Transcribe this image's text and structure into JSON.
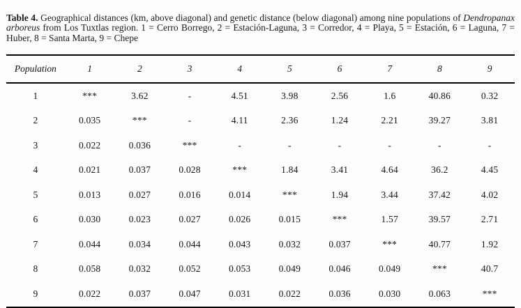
{
  "caption": {
    "label": "Table 4.",
    "part1": " Geographical distances (km, above diagonal) and genetic distance (below diagonal) among nine populations of ",
    "species": "Dendropanax arboreus",
    "part2": " from Los Tuxtlas region. 1 = Cerro Borrego, 2 = Estación-Laguna, 3 = Corredor, 4 = Playa, 5 = Estación, 6 = Laguna, 7 = Huber, 8 = Santa Marta, 9 = Chepe"
  },
  "table": {
    "header": [
      "Population",
      "1",
      "2",
      "3",
      "4",
      "5",
      "6",
      "7",
      "8",
      "9"
    ],
    "rows": [
      [
        "1",
        "***",
        "3.62",
        "-",
        "4.51",
        "3.98",
        "2.56",
        "1.6",
        "40.86",
        "0.32"
      ],
      [
        "2",
        "0.035",
        "***",
        "-",
        "4.11",
        "2.36",
        "1.24",
        "2.21",
        "39.27",
        "3.81"
      ],
      [
        "3",
        "0.022",
        "0.036",
        "***",
        "-",
        "-",
        "-",
        "-",
        "-",
        "-"
      ],
      [
        "4",
        "0.021",
        "0.037",
        "0.028",
        "***",
        "1.84",
        "3.41",
        "4.64",
        "36.2",
        "4.45"
      ],
      [
        "5",
        "0.013",
        "0.027",
        "0.016",
        "0.014",
        "***",
        "1.94",
        "3.44",
        "37.42",
        "4.02"
      ],
      [
        "6",
        "0.030",
        "0.023",
        "0.027",
        "0.026",
        "0.015",
        "***",
        "1.57",
        "39.57",
        "2.71"
      ],
      [
        "7",
        "0.044",
        "0.034",
        "0.044",
        "0.043",
        "0.032",
        "0.037",
        "***",
        "40.77",
        "1.92"
      ],
      [
        "8",
        "0.058",
        "0.032",
        "0.052",
        "0.053",
        "0.049",
        "0.046",
        "0.049",
        "***",
        "40.7"
      ],
      [
        "9",
        "0.022",
        "0.037",
        "0.047",
        "0.031",
        "0.022",
        "0.036",
        "0.030",
        "0.063",
        "***"
      ]
    ]
  }
}
